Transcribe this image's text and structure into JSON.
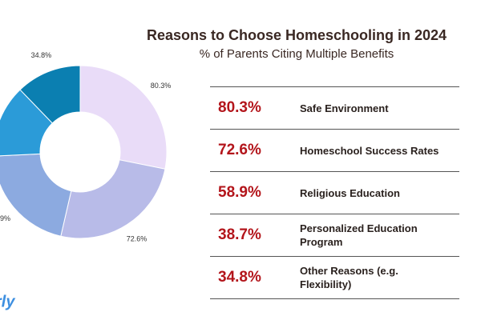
{
  "chart_data": {
    "type": "donut",
    "title": "Reasons to Choose Homeschooling in 2024",
    "subtitle": "% of Parents Citing Multiple Benefits",
    "categories": [
      "Safe Environment",
      "Homeschool Success Rates",
      "Religious Education",
      "Personalized Education Program",
      "Other Reasons (e.g. Flexibility)"
    ],
    "values": [
      80.3,
      72.6,
      58.9,
      38.7,
      34.8
    ],
    "value_labels": [
      "80.3%",
      "72.6%",
      "58.9%",
      "38.7%",
      "34.8%"
    ],
    "colors": [
      "#e9dcf8",
      "#b8bbe8",
      "#8caae0",
      "#2b9bd8",
      "#0b7fb1"
    ],
    "brand": "rly"
  }
}
